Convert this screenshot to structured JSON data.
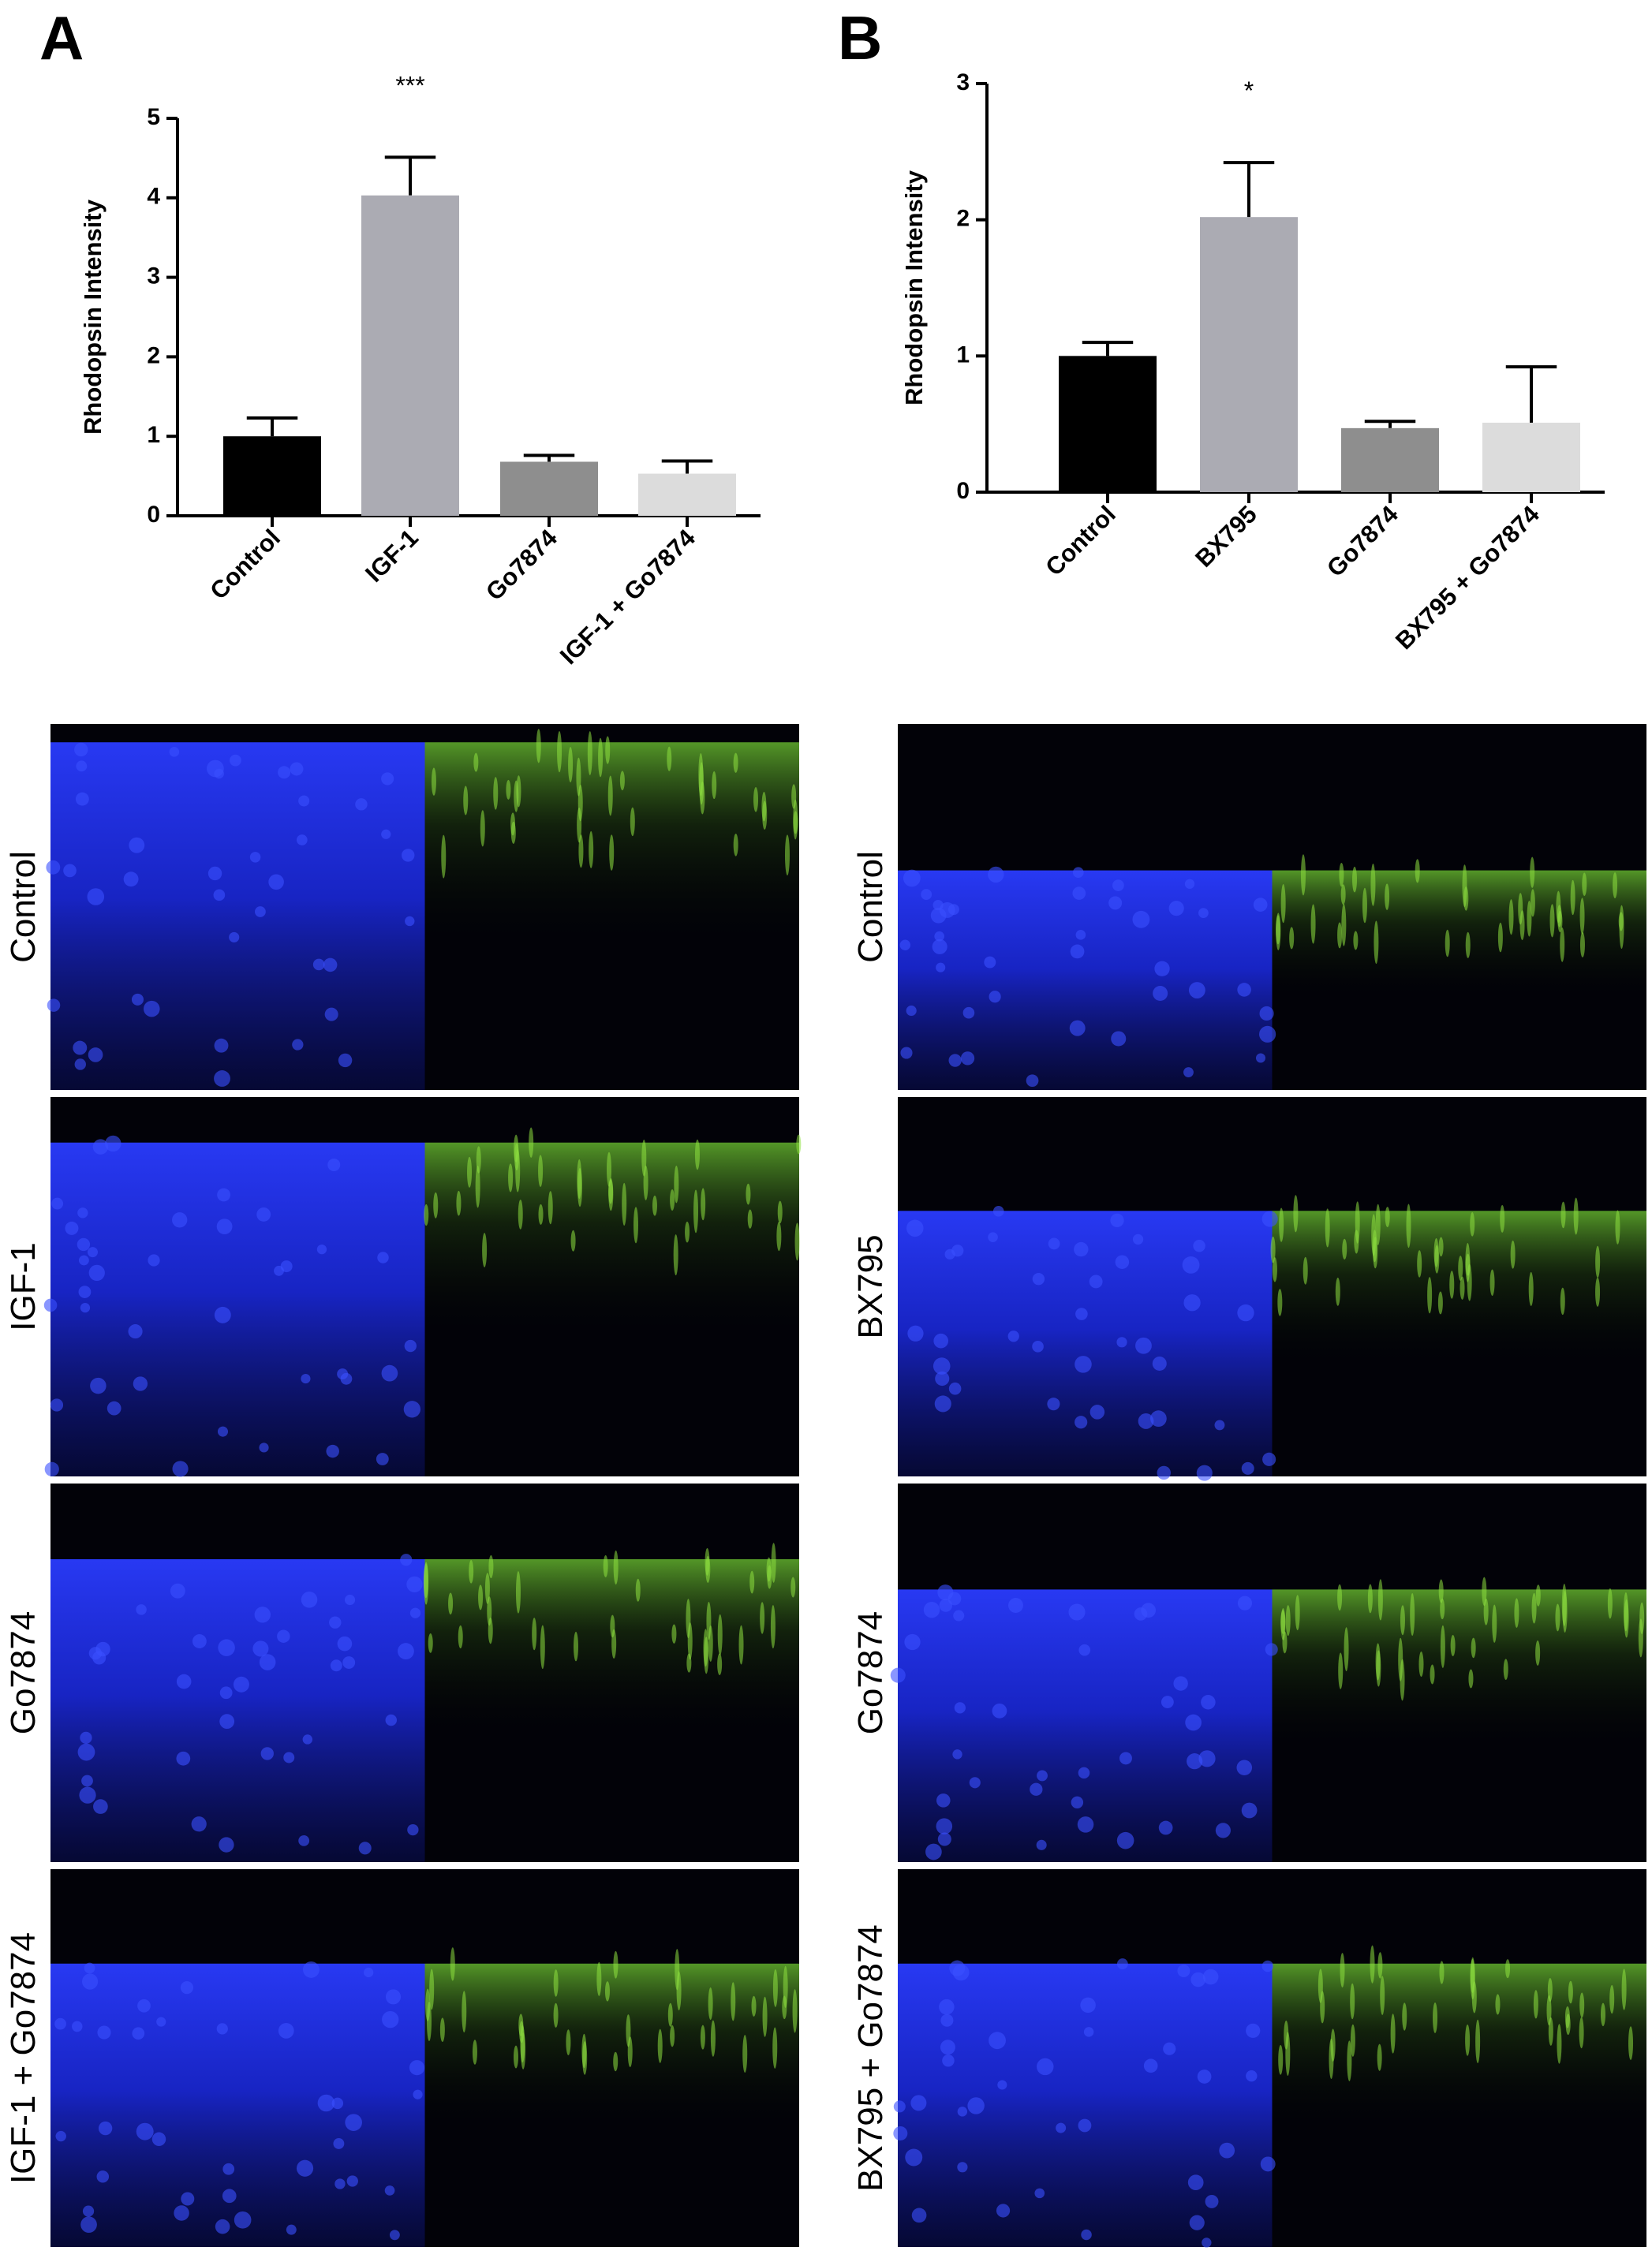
{
  "chart_data": [
    {
      "type": "bar",
      "panel_label": "A",
      "y_label": "Rhodopsin Intensity",
      "categories": [
        "Control",
        "IGF-1",
        "Go7874",
        "IGF-1 + Go7874"
      ],
      "values": [
        1.0,
        4.03,
        0.68,
        0.53
      ],
      "errors": [
        0.23,
        0.48,
        0.08,
        0.16
      ],
      "significance": [
        null,
        "***",
        null,
        null
      ],
      "colors": [
        "#000000",
        "#ababb3",
        "#8e8e8e",
        "#dcdcdc"
      ],
      "ylim": [
        0,
        5
      ],
      "yticks": [
        0,
        1,
        2,
        3,
        4,
        5
      ]
    },
    {
      "type": "bar",
      "panel_label": "B",
      "y_label": "Rhodopsin Intensity",
      "categories": [
        "Control",
        "BX795",
        "Go7874",
        "BX795 + Go7874"
      ],
      "values": [
        1.0,
        2.02,
        0.47,
        0.51
      ],
      "errors": [
        0.1,
        0.4,
        0.05,
        0.41
      ],
      "significance": [
        null,
        "*",
        null,
        null
      ],
      "colors": [
        "#000000",
        "#ababb3",
        "#8e8e8e",
        "#dcdcdc"
      ],
      "ylim": [
        0,
        3
      ],
      "yticks": [
        0,
        1,
        2,
        3
      ]
    }
  ],
  "image_rows": [
    [
      "Control",
      "IGF-1",
      "Go7874",
      "IGF-1 + Go7874"
    ],
    [
      "Control",
      "BX795",
      "Go7874",
      "BX795 + Go7874"
    ]
  ]
}
